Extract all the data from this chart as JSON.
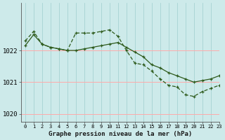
{
  "title": "Graphe pression niveau de la mer (hPa)",
  "background_color": "#cdeaea",
  "line_color": "#2d5a1b",
  "grid_color_v": "#aad4d4",
  "grid_color_h": "#ffaaaa",
  "xlim": [
    -0.5,
    23
  ],
  "ylim": [
    1019.75,
    1023.5
  ],
  "yticks": [
    1020,
    1021,
    1022
  ],
  "xticks": [
    0,
    1,
    2,
    3,
    4,
    5,
    6,
    7,
    8,
    9,
    10,
    11,
    12,
    13,
    14,
    15,
    16,
    17,
    18,
    19,
    20,
    21,
    22,
    23
  ],
  "s1_x": [
    0,
    1,
    2,
    3,
    4,
    5,
    6,
    7,
    8,
    9,
    10,
    11,
    12,
    13,
    14,
    15,
    16,
    17,
    18,
    19,
    20,
    21,
    22,
    23
  ],
  "s1_y": [
    1022.15,
    1022.5,
    1022.2,
    1022.1,
    1022.05,
    1022.0,
    1022.0,
    1022.05,
    1022.1,
    1022.15,
    1022.2,
    1022.25,
    1022.1,
    1021.95,
    1021.8,
    1021.55,
    1021.45,
    1021.3,
    1021.2,
    1021.1,
    1021.0,
    1021.05,
    1021.1,
    1021.2
  ],
  "s2_x": [
    0,
    1,
    2,
    3,
    4,
    5,
    6,
    7,
    8,
    9,
    10,
    11,
    12,
    13,
    14,
    15,
    16,
    17,
    18,
    19,
    20,
    21,
    22,
    23
  ],
  "s2_y": [
    1022.3,
    1022.6,
    1022.2,
    1022.1,
    1022.05,
    1022.0,
    1022.55,
    1022.55,
    1022.55,
    1022.6,
    1022.65,
    1022.45,
    1022.0,
    1021.6,
    1021.55,
    1021.35,
    1021.1,
    1020.9,
    1020.85,
    1020.6,
    1020.55,
    1020.7,
    1020.8,
    1020.9
  ],
  "ylabel_fontsize": 6.5,
  "xlabel_fontsize": 6.5,
  "tick_fontsize": 5.0
}
